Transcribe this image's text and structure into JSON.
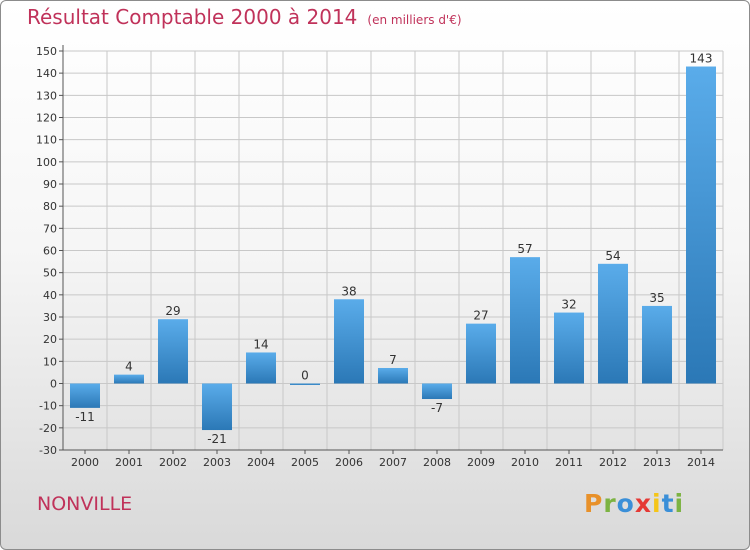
{
  "header": {
    "title": "Résultat Comptable 2000 à 2014",
    "subtitle": "(en milliers d'€)"
  },
  "footer": {
    "place": "NONVILLE",
    "logo": "Proxiti"
  },
  "colors": {
    "title": "#c0325a",
    "bar_light": "#5aacea",
    "bar_dark": "#2b78b6",
    "grid": "#c8c8c8"
  },
  "chart_data": {
    "type": "bar",
    "categories": [
      "2000",
      "2001",
      "2002",
      "2003",
      "2004",
      "2005",
      "2006",
      "2007",
      "2008",
      "2009",
      "2010",
      "2011",
      "2012",
      "2013",
      "2014"
    ],
    "values": [
      -11,
      4,
      29,
      -21,
      14,
      0,
      38,
      7,
      -7,
      27,
      57,
      32,
      54,
      35,
      143
    ],
    "data_labels": [
      "-11",
      "4",
      "29",
      "-21",
      "14",
      "0",
      "38",
      "7",
      "-7",
      "27",
      "57",
      "32",
      "54",
      "35",
      "143"
    ],
    "ylim": [
      -30,
      150
    ],
    "yticks": [
      -30,
      -20,
      -10,
      0,
      10,
      20,
      30,
      40,
      50,
      60,
      70,
      80,
      90,
      100,
      110,
      120,
      130,
      140,
      150
    ],
    "grid": true
  }
}
